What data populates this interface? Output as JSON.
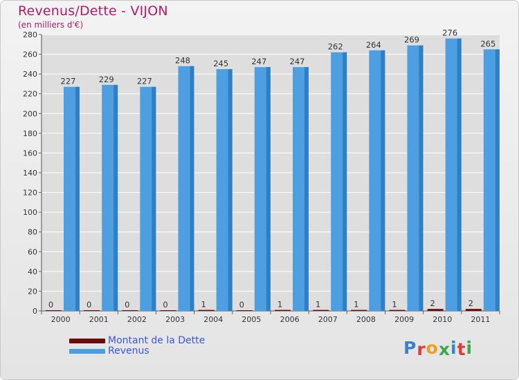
{
  "header": {
    "title": "Revenus/Dette - VIJON",
    "subtitle": "(en milliers d'€)"
  },
  "legend": {
    "items": [
      {
        "label": "Montant de la Dette",
        "color": "#6b0b0b"
      },
      {
        "label": "Revenus",
        "color": "#4a9fe0"
      }
    ]
  },
  "logo": {
    "letters": [
      {
        "ch": "P",
        "color": "#3b7fd0"
      },
      {
        "ch": "r",
        "color": "#e03a3a"
      },
      {
        "ch": "o",
        "color": "#f0a020"
      },
      {
        "ch": "x",
        "color": "#3aa84a"
      },
      {
        "ch": "i",
        "color": "#3b7fd0"
      },
      {
        "ch": "t",
        "color": "#e03a3a"
      },
      {
        "ch": "i",
        "color": "#3aa84a"
      }
    ]
  },
  "chart_data": {
    "type": "bar",
    "categories": [
      "2000",
      "2001",
      "2002",
      "2003",
      "2004",
      "2005",
      "2006",
      "2007",
      "2008",
      "2009",
      "2010",
      "2011"
    ],
    "series": [
      {
        "name": "Montant de la Dette",
        "color": "#6b0b0b",
        "values": [
          0,
          0,
          0,
          0,
          1,
          0,
          1,
          1,
          1,
          1,
          2,
          2
        ]
      },
      {
        "name": "Revenus",
        "color": "#4a9fe0",
        "values": [
          227,
          229,
          227,
          248,
          245,
          247,
          247,
          262,
          264,
          269,
          276,
          265
        ]
      }
    ],
    "ylim": [
      0,
      280
    ],
    "yticks": [
      0,
      20,
      40,
      60,
      80,
      100,
      120,
      140,
      160,
      180,
      200,
      220,
      240,
      260,
      280
    ],
    "grid": true,
    "legend_position": "bottom-left"
  }
}
